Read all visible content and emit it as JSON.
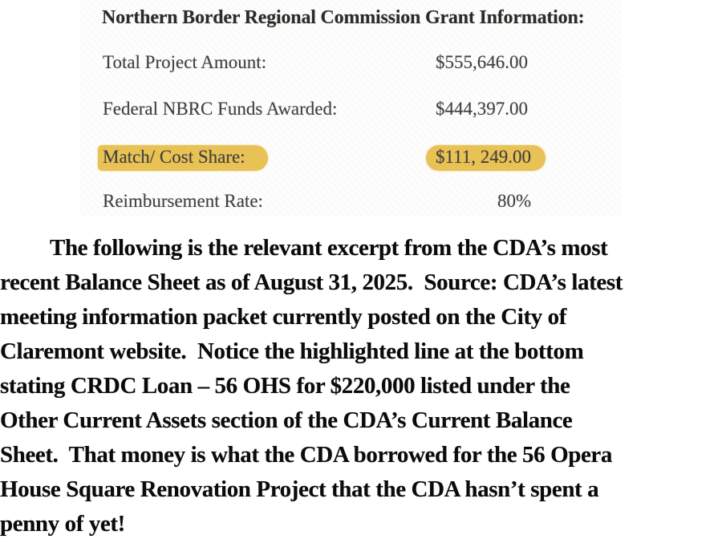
{
  "scan": {
    "title": "Northern Border Regional Commission Grant Information:",
    "rows": [
      {
        "label": "Total Project Amount:",
        "value": "$555,646.00",
        "highlighted": false
      },
      {
        "label": "Federal NBRC Funds Awarded:",
        "value": "$444,397.00",
        "highlighted": false
      },
      {
        "label": "Match/ Cost Share:",
        "value": "$111, 249.00",
        "highlighted": true
      },
      {
        "label": "Reimbursement Rate:",
        "value": "80%",
        "highlighted": false
      }
    ],
    "highlight_color": "#e9c256",
    "text_color": "#403f3c",
    "title_color": "#2c2b28"
  },
  "paragraph": {
    "lines": [
      "The following is the relevant excerpt from the CDA’s most",
      "recent Balance Sheet as of August 31, 2025.  Source: CDA’s latest",
      "meeting information packet currently posted on the City of",
      "Claremont website.  Notice the highlighted line at the bottom",
      "stating CRDC Loan – 56 OHS for $220,000 listed under the",
      "Other Current Assets section of the CDA’s Current Balance",
      "Sheet.  That money is what the CDA borrowed for the 56 Opera",
      "House Square Renovation Project that the CDA hasn’t spent a",
      "penny of yet!"
    ]
  }
}
